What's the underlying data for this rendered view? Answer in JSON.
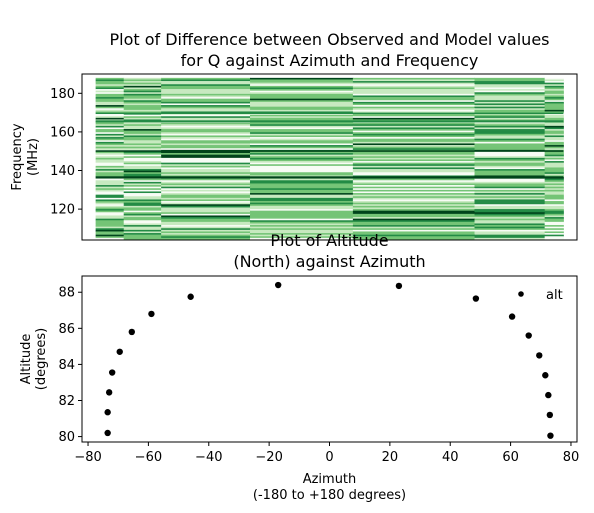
{
  "chart_data": [
    {
      "type": "heatmap",
      "title_line1": "Plot of Difference between Observed and Model values",
      "title_line2": "for Q against Azimuth and Frequency",
      "ylabel_line1": "Frequency",
      "ylabel_line2": "(MHz)",
      "yticks": [
        "120",
        "140",
        "160",
        "180"
      ],
      "ytick_values": [
        120,
        140,
        160,
        180
      ],
      "ylim": [
        104,
        190
      ],
      "xlim": [
        -78,
        78
      ],
      "data_xrange": [
        -73.7,
        73.7
      ],
      "data_yrange": [
        105,
        188
      ],
      "colormap": "Greens",
      "colors": [
        "#f7fcf5",
        "#c7e9c0",
        "#74c476",
        "#238b45",
        "#00441b"
      ]
    },
    {
      "type": "scatter",
      "title_line1": "Plot of Altitude",
      "title_line2": "(North) against Azimuth",
      "xlabel_line1": "Azimuth",
      "xlabel_line2": "(-180 to +180 degrees)",
      "ylabel_line1": "Altitude",
      "ylabel_line2": "(degrees)",
      "xticks": [
        "−80",
        "−60",
        "−40",
        "−20",
        "0",
        "20",
        "40",
        "60",
        "80"
      ],
      "xtick_values": [
        -80,
        -60,
        -40,
        -20,
        0,
        20,
        40,
        60,
        80
      ],
      "yticks": [
        "80",
        "82",
        "84",
        "86",
        "88"
      ],
      "ytick_values": [
        80,
        82,
        84,
        86,
        88
      ],
      "xlim": [
        -82,
        82
      ],
      "ylim": [
        79.7,
        88.9
      ],
      "legend": "alt",
      "legend_position": "upper right",
      "marker_color": "#000000",
      "x": [
        -73.5,
        -73.5,
        -73.0,
        -72.0,
        -69.5,
        -65.5,
        -59.0,
        -46.0,
        -17.0,
        23.0,
        48.5,
        60.5,
        66.0,
        69.5,
        71.5,
        72.5,
        73.0,
        73.2
      ],
      "y": [
        80.2,
        81.35,
        82.45,
        83.55,
        84.7,
        85.8,
        86.8,
        87.75,
        88.4,
        88.35,
        87.65,
        86.65,
        85.6,
        84.5,
        83.4,
        82.3,
        81.2,
        80.05
      ]
    }
  ]
}
